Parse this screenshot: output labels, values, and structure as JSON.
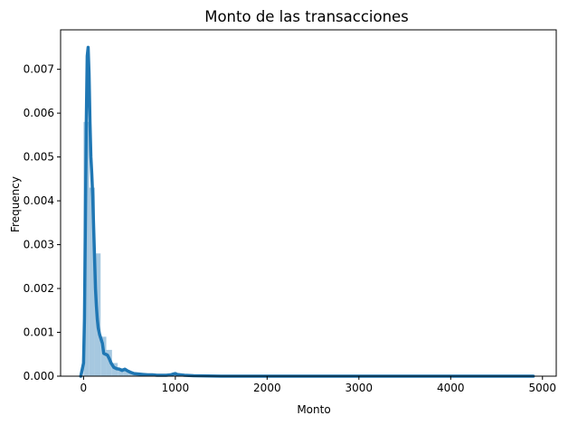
{
  "chart_data": {
    "type": "histogram+kde",
    "title": "Monto de las transacciones",
    "xlabel": "Monto",
    "ylabel": "Frequency",
    "xlim": [
      -250,
      5150
    ],
    "ylim": [
      0,
      0.0079
    ],
    "xticks": [
      0,
      1000,
      2000,
      3000,
      4000,
      5000
    ],
    "yticks": [
      0.0,
      0.001,
      0.002,
      0.003,
      0.004,
      0.005,
      0.006,
      0.007
    ],
    "ytick_labels": [
      "0.000",
      "0.001",
      "0.002",
      "0.003",
      "0.004",
      "0.005",
      "0.006",
      "0.007"
    ],
    "grid": false,
    "colors": {
      "bar": "#a6c8e0",
      "kde": "#1f77b4"
    },
    "bin_width": 62,
    "histogram": [
      {
        "x0": 0,
        "h": 0.0058
      },
      {
        "x0": 62,
        "h": 0.0043
      },
      {
        "x0": 124,
        "h": 0.0028
      },
      {
        "x0": 186,
        "h": 0.0009
      },
      {
        "x0": 248,
        "h": 0.0006
      },
      {
        "x0": 310,
        "h": 0.0003
      },
      {
        "x0": 372,
        "h": 0.00018
      },
      {
        "x0": 434,
        "h": 0.00012
      },
      {
        "x0": 496,
        "h": 8e-05
      },
      {
        "x0": 558,
        "h": 6e-05
      },
      {
        "x0": 620,
        "h": 4e-05
      },
      {
        "x0": 682,
        "h": 3e-05
      },
      {
        "x0": 744,
        "h": 2e-05
      },
      {
        "x0": 806,
        "h": 2e-05
      },
      {
        "x0": 868,
        "h": 1e-05
      },
      {
        "x0": 930,
        "h": 3e-05
      },
      {
        "x0": 992,
        "h": 4e-05
      }
    ],
    "kde": {
      "x": [
        -30,
        0,
        10,
        20,
        30,
        40,
        50,
        60,
        70,
        80,
        90,
        100,
        110,
        120,
        130,
        140,
        150,
        160,
        175,
        190,
        205,
        220,
        240,
        260,
        280,
        300,
        330,
        360,
        390,
        420,
        450,
        480,
        510,
        550,
        600,
        650,
        700,
        750,
        800,
        850,
        900,
        950,
        980,
        1000,
        1020,
        1100,
        1200,
        1500,
        2000,
        2500,
        3000,
        3500,
        4000,
        4500,
        4900
      ],
      "y": [
        0.0,
        0.0003,
        0.0013,
        0.0035,
        0.0058,
        0.0073,
        0.0075,
        0.0069,
        0.0058,
        0.005,
        0.0046,
        0.0041,
        0.0034,
        0.0027,
        0.002,
        0.0016,
        0.0013,
        0.0011,
        0.00095,
        0.00085,
        0.00075,
        0.00052,
        0.0005,
        0.00048,
        0.0004,
        0.0003,
        0.0002,
        0.00017,
        0.00016,
        0.00013,
        0.00016,
        0.00012,
        9e-05,
        6e-05,
        5e-05,
        4e-05,
        3e-05,
        3e-05,
        2e-05,
        2e-05,
        2e-05,
        3e-05,
        5e-05,
        6e-05,
        4e-05,
        2e-05,
        1e-05,
        0.0,
        0.0,
        0.0,
        0.0,
        0.0,
        0.0,
        0.0,
        0.0
      ]
    }
  }
}
